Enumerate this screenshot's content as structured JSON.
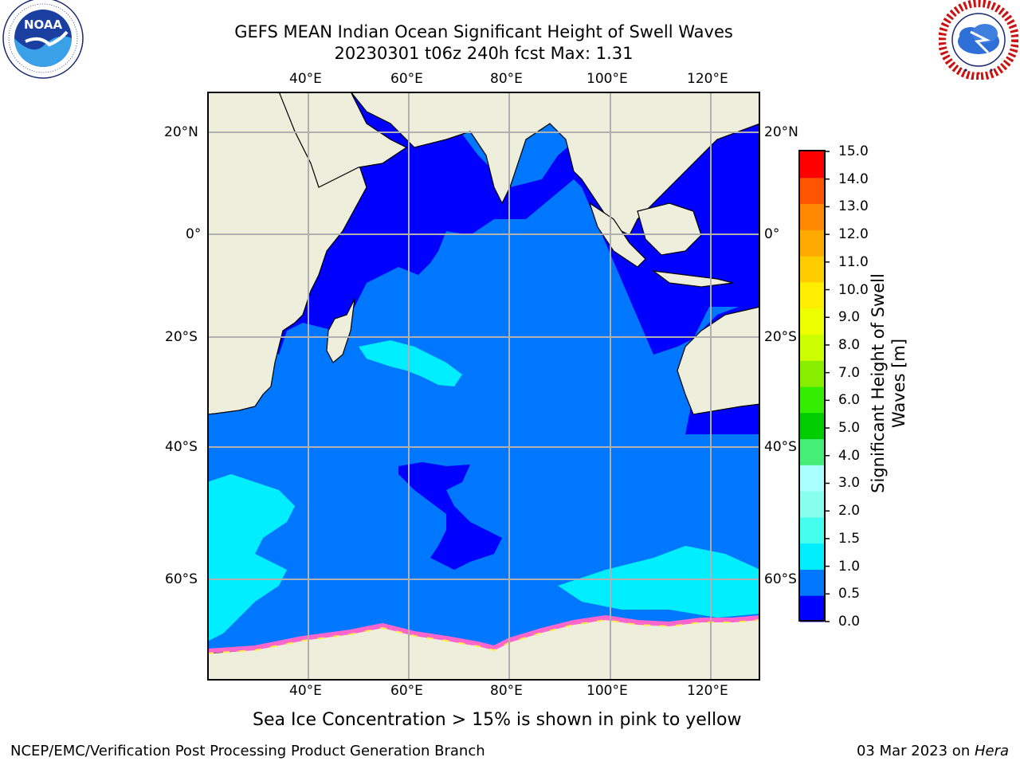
{
  "header": {
    "title_line1": "GEFS MEAN Indian Ocean Significant Height of Swell Waves",
    "title_line2": "20230301 t06z 240h fcst   Max: 1.31"
  },
  "logos": {
    "left": {
      "name": "noaa-logo",
      "text": "NOAA",
      "ring_text": "NATIONAL OCEANIC AND ATMOSPHERIC ADMINISTRATION · U.S. DEPARTMENT OF COMMERCE"
    },
    "right": {
      "name": "nws-logo",
      "ring_text": "NATIONAL WEATHER SERVICE"
    }
  },
  "map": {
    "lon_ticks_top": [
      "40°E",
      "60°E",
      "80°E",
      "100°E",
      "120°E"
    ],
    "lon_ticks_bottom": [
      "40°E",
      "60°E",
      "80°E",
      "100°E",
      "120°E"
    ],
    "lat_ticks_left": [
      "20°N",
      "0°",
      "20°S",
      "40°S",
      "60°S"
    ],
    "lat_ticks_right": [
      "20°N",
      "0°",
      "20°S",
      "40°S",
      "60°S"
    ],
    "colors": {
      "land": "#eeeedd",
      "ice_pink": "#ff66cc",
      "ice_yellow": "#ffee44",
      "grid": "#b0b0b0"
    }
  },
  "colorbar": {
    "label": "Significant Height of Swell Waves [m]",
    "ticks": [
      "15.0",
      "14.0",
      "13.0",
      "12.0",
      "11.0",
      "10.0",
      "9.0",
      "8.0",
      "7.0",
      "6.0",
      "5.0",
      "4.0",
      "3.0",
      "2.0",
      "1.5",
      "1.0",
      "0.5",
      "0.0"
    ],
    "colors_bottom_to_top": [
      "#0000ff",
      "#0077ff",
      "#00eeff",
      "#44ffee",
      "#88ffee",
      "#aaffff",
      "#44ee77",
      "#00cc00",
      "#33ee00",
      "#88ee00",
      "#ccff00",
      "#eeff00",
      "#ffee00",
      "#ffcc00",
      "#ffaa00",
      "#ff8800",
      "#ff5500",
      "#ff0000"
    ]
  },
  "note": "Sea Ice Concentration > 15% is shown in pink to yellow",
  "footer": {
    "left": "NCEP/EMC/Verification Post Processing Product Generation Branch",
    "right_date": "03 Mar 2023 on ",
    "right_machine": "Hera"
  }
}
